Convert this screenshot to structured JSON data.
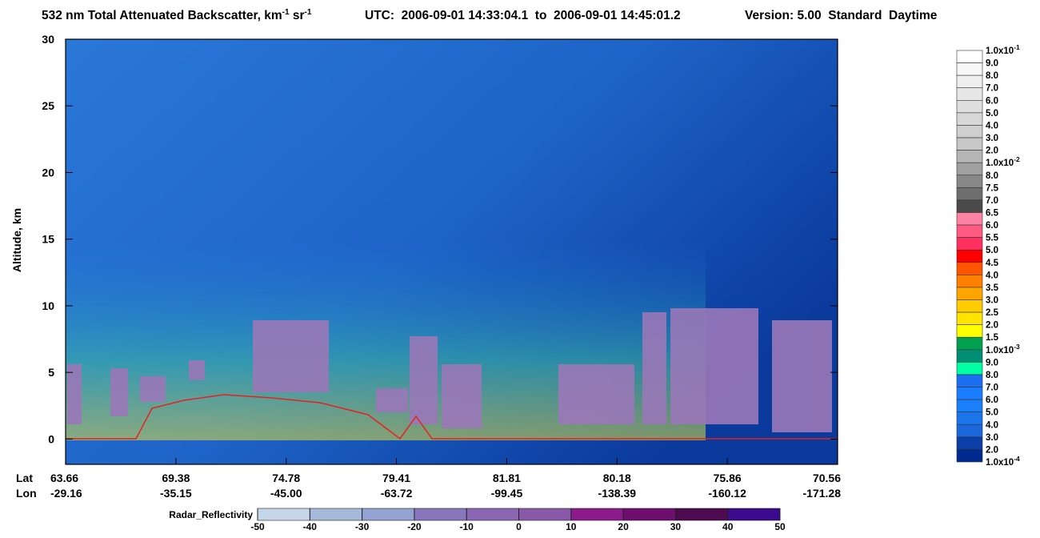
{
  "chart_data": {
    "type": "heatmap",
    "title": [
      "532 nm Total Attenuated Backscatter, km",
      "-1",
      " sr",
      "-1"
    ],
    "time_range": "UTC:  2006-09-01 14:33:04.1  to  2006-09-01 14:45:01.2",
    "version": "Version: 5.00  Standard  Daytime",
    "ylabel": "Altitude, km",
    "ylim": [
      -1.9,
      30
    ],
    "yticks": [
      0,
      5,
      10,
      15,
      20,
      25,
      30
    ],
    "lat_label": "Lat",
    "lon_label": "Lon",
    "lat": [
      "63.66",
      "69.38",
      "74.78",
      "79.41",
      "81.81",
      "80.18",
      "75.86",
      "70.56"
    ],
    "lon": [
      "-29.16",
      "-35.15",
      "-45.00",
      "-63.72",
      "-99.45",
      "-138.39",
      "-160.12",
      "-171.28"
    ],
    "colorbar": {
      "labels": [
        "1.0x10-1",
        "9.0",
        "8.0",
        "7.0",
        "6.0",
        "5.0",
        "4.0",
        "3.0",
        "2.0",
        "1.0x10-2",
        "8.0",
        "7.5",
        "7.0",
        "6.5",
        "6.0",
        "5.5",
        "5.0",
        "4.5",
        "4.0",
        "3.5",
        "3.0",
        "2.5",
        "2.0",
        "1.5",
        "1.0x10-3",
        "9.0",
        "8.0",
        "7.0",
        "6.0",
        "5.0",
        "4.0",
        "3.0",
        "2.0",
        "1.0x10-4"
      ],
      "colors": [
        "#ffffff",
        "#f7f7f7",
        "#efefef",
        "#e7e7e7",
        "#dfdfdf",
        "#d7d7d7",
        "#cfcfcf",
        "#c7c7c7",
        "#b5b5b5",
        "#a0a0a0",
        "#888888",
        "#6e6e6e",
        "#4a4a4a",
        "#ff82a4",
        "#ff5a82",
        "#ff3060",
        "#ff0000",
        "#ff5400",
        "#ff8000",
        "#ffa400",
        "#ffcc00",
        "#ffe400",
        "#ffff00",
        "#00a050",
        "#008f74",
        "#00ffa4",
        "#1a70f0",
        "#1a7cff",
        "#1a80f8",
        "#1a74ea",
        "#1a68dc",
        "#0c3ea8",
        "#002a90"
      ]
    },
    "radar_colorbar": {
      "label": "Radar_Reflectivity",
      "ticks": [
        -50,
        -40,
        -30,
        -20,
        -10,
        0,
        10,
        20,
        30,
        40,
        50
      ],
      "colors": [
        "#c6d6ea",
        "#a5b9db",
        "#93a3d2",
        "#8877bd",
        "#8a66b3",
        "#8a58a8",
        "#8b1a8b",
        "#6e0f6e",
        "#4e0a4e",
        "#3c0a8c"
      ]
    }
  }
}
